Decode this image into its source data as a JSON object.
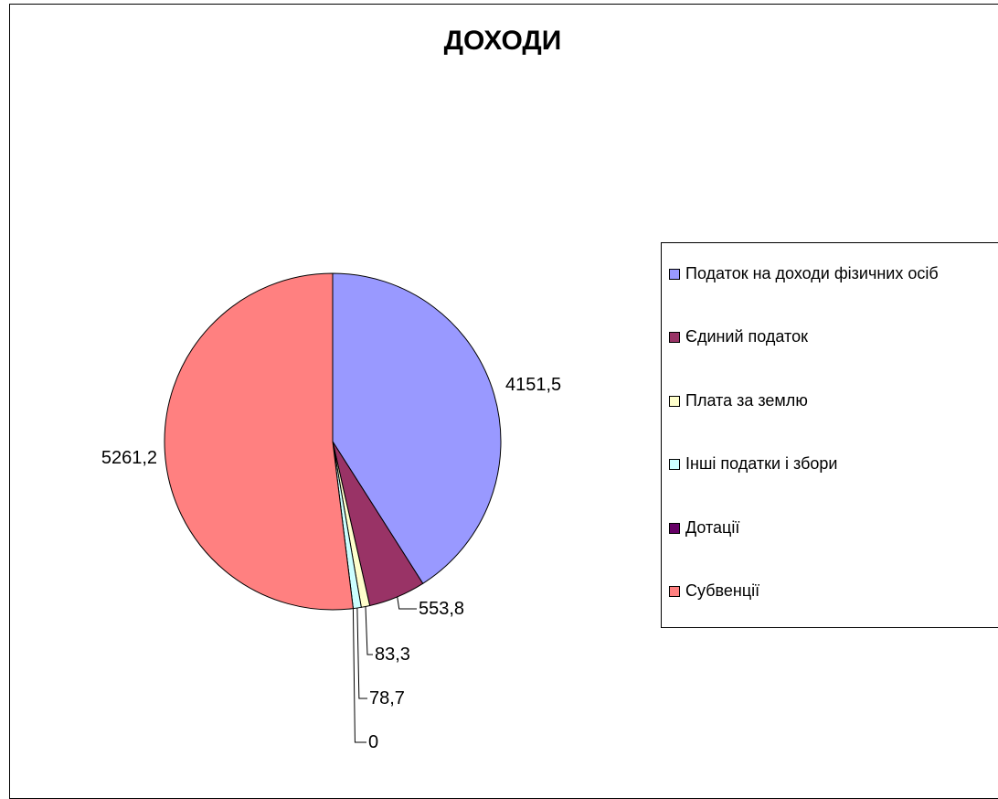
{
  "chart_data": {
    "type": "pie",
    "title": "ДОХОДИ",
    "categories": [
      "Податок на доходи фізичних осіб",
      "Єдиний податок",
      "Плата за землю",
      "Інші податки і збори",
      "Дотації",
      "Субвенції"
    ],
    "values": [
      4151.5,
      553.8,
      83.3,
      78.7,
      0,
      5261.2
    ],
    "data_labels": [
      "4151,5",
      "553,8",
      "83,3",
      "78,7",
      "0",
      "5261,2"
    ],
    "colors": [
      "#9999FF",
      "#993366",
      "#FFFFCC",
      "#CCFFFF",
      "#660066",
      "#FF8080"
    ],
    "legend_placement": "right"
  }
}
